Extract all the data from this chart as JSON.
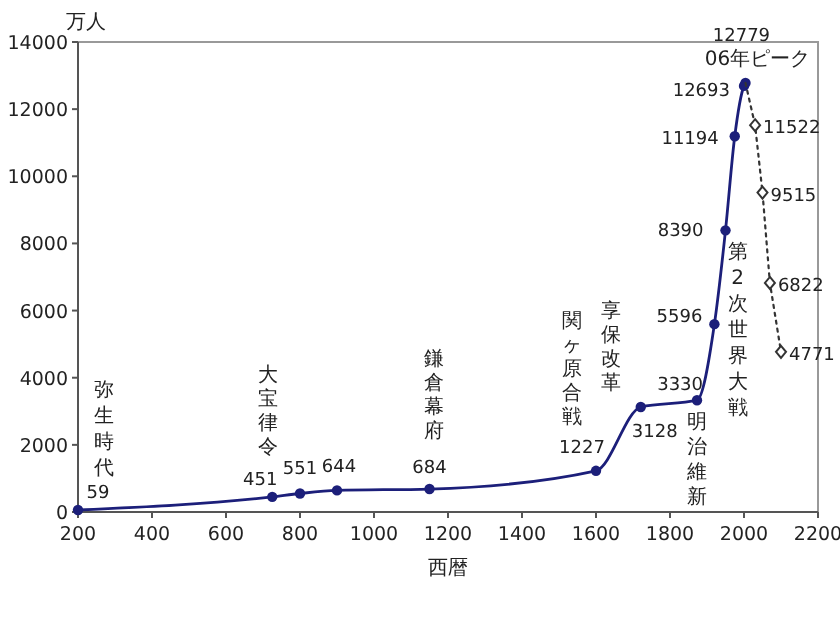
{
  "chart_data": {
    "type": "line",
    "xlabel": "西暦",
    "ylabel": "万人",
    "xlim": [
      200,
      2200
    ],
    "xticks": [
      200,
      400,
      600,
      800,
      1000,
      1200,
      1400,
      1600,
      1800,
      2000,
      2200
    ],
    "ylim": [
      0,
      14000
    ],
    "yticks": [
      0,
      2000,
      4000,
      6000,
      8000,
      10000,
      12000,
      14000
    ],
    "grid": false,
    "series": [
      {
        "color": "#1c1f7a",
        "marker": "circle",
        "line_style": "solid",
        "x": [
          200,
          725,
          800,
          900,
          1150,
          1600,
          1721,
          1873,
          1920,
          1950,
          1975,
          2000,
          2004
        ],
        "values": [
          59,
          451,
          551,
          644,
          684,
          1227,
          3128,
          3330,
          5596,
          8390,
          11194,
          12693,
          12779
        ],
        "value_labels": [
          "59",
          "451",
          "551",
          "644",
          "684",
          "1227",
          "3128",
          "3330",
          "5596",
          "8390",
          "11194",
          "12693",
          "12779"
        ]
      },
      {
        "color": "#333333",
        "marker": "diamond",
        "line_style": "dotted",
        "x": [
          2004,
          2030,
          2050,
          2070,
          2100
        ],
        "values": [
          12779,
          11522,
          9515,
          6822,
          4771
        ],
        "value_labels": [
          null,
          "11522",
          "9515",
          "6822",
          "4771"
        ]
      }
    ],
    "annotations": [
      {
        "text": "弥生時代",
        "x": 200,
        "y": 59
      },
      {
        "text": "大宝律令",
        "x": 725,
        "y": 451
      },
      {
        "text": "鎌倉幕府",
        "x": 1150,
        "y": 684
      },
      {
        "text": "関ヶ原合戦",
        "x": 1600,
        "y": 1227
      },
      {
        "text": "享保改革",
        "x": 1721,
        "y": 3128
      },
      {
        "text": "明治維新",
        "x": 1873,
        "y": 3330
      },
      {
        "text": "第2次世界大戦",
        "x": 1945,
        "y": 7800
      },
      {
        "text": "06年ピーク",
        "x": 2004,
        "y": 12779
      }
    ]
  }
}
